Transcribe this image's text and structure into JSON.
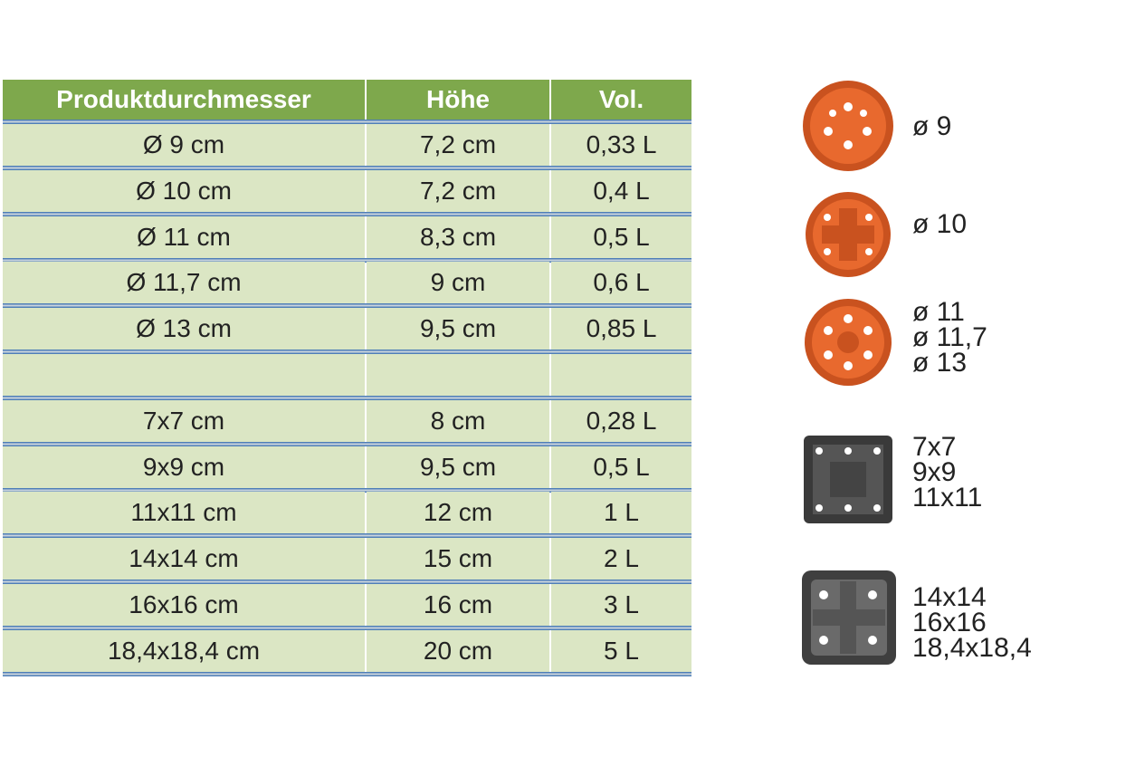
{
  "table": {
    "header": [
      "Produktdurchmesser",
      "Höhe",
      "Vol."
    ],
    "groups": [
      {
        "rows": [
          [
            "Ø 9 cm",
            "7,2 cm",
            "0,33 L"
          ],
          [
            "Ø 10 cm",
            "7,2 cm",
            "0,4 L"
          ],
          [
            "Ø 11 cm",
            "8,3 cm",
            "0,5 L"
          ],
          [
            "Ø 11,7 cm",
            "9 cm",
            "0,6 L"
          ],
          [
            "Ø 13 cm",
            "9,5 cm",
            "0,85 L"
          ]
        ]
      },
      {
        "rows": [
          [
            "7x7 cm",
            "8 cm",
            "0,28 L"
          ],
          [
            "9x9 cm",
            "9,5 cm",
            "0,5 L"
          ],
          [
            "11x11 cm",
            "12 cm",
            "1 L"
          ],
          [
            "14x14 cm",
            "15 cm",
            "2 L"
          ],
          [
            "16x16 cm",
            "16 cm",
            "3 L"
          ],
          [
            "18,4x18,4 cm",
            "20 cm",
            "5 L"
          ]
        ]
      }
    ]
  },
  "icons": [
    {
      "labels": [
        "ø 9"
      ]
    },
    {
      "labels": [
        "ø 10"
      ]
    },
    {
      "labels": [
        "ø 11",
        "ø 11,7",
        "ø 13"
      ]
    },
    {
      "labels": [
        "7x7",
        "9x9",
        "11x11"
      ]
    },
    {
      "labels": [
        "14x14",
        "16x16",
        "18,4x18,4"
      ]
    }
  ]
}
